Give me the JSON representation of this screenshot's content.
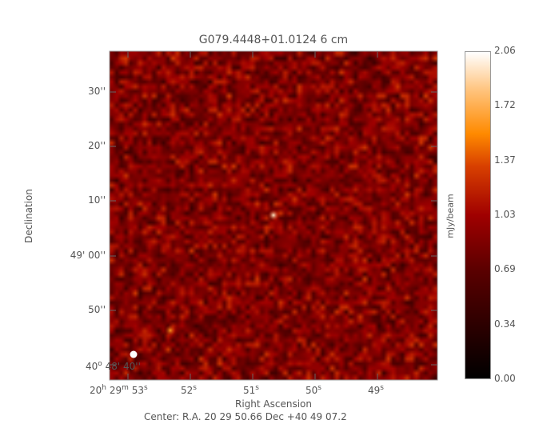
{
  "chart_data": {
    "type": "heatmap",
    "title": "G079.4448+01.0124 6 cm",
    "xlabel": "Right Ascension",
    "ylabel": "Declination",
    "x_ticks": [
      {
        "h": "20",
        "m": "29",
        "s": "53"
      },
      {
        "s": "52"
      },
      {
        "s": "51"
      },
      {
        "s": "50"
      },
      {
        "s": "49"
      }
    ],
    "y_ticks": [
      "30''",
      "20''",
      "10''",
      "49' 00''",
      "50''",
      "40''"
    ],
    "y_tick_first_prefix": "40",
    "y_tick_first_rest": "48' 40''",
    "colorbar": {
      "label": "mJy/beam",
      "ticks": [
        "2.06",
        "1.72",
        "1.37",
        "1.03",
        "0.69",
        "0.34",
        "0.00"
      ],
      "range": [
        0.0,
        2.06
      ],
      "colormap": "red-orange-white"
    },
    "center_text": "Center:  R.A. 20 29 50.66     Dec  +40 49 07.2",
    "sources": [
      {
        "ra_s": 50.65,
        "dec": "40 49 07.5",
        "peak": 2.0
      },
      {
        "ra_s": 52.3,
        "dec": "40 48 46",
        "peak": 1.6
      }
    ],
    "colors": {
      "background_noise": "#8b0000",
      "source": "#ffc060"
    }
  }
}
